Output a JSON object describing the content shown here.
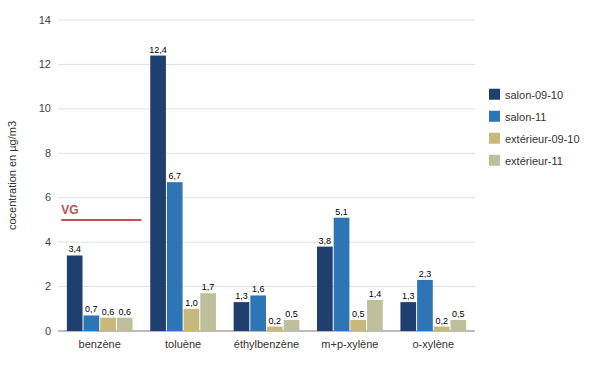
{
  "chart_data": {
    "type": "bar",
    "categories": [
      "benzène",
      "toluène",
      "éthylbenzène",
      "m+p-xylène",
      "o-xylène"
    ],
    "series": [
      {
        "name": "salon-09-10",
        "color": "#1F3F6E",
        "values": [
          3.4,
          12.4,
          1.3,
          3.8,
          1.3
        ],
        "value_labels": [
          "3,4",
          "12,4",
          "1,3",
          "3,8",
          "1,3"
        ]
      },
      {
        "name": "salon-11",
        "color": "#2E75B6",
        "values": [
          0.7,
          6.7,
          1.6,
          5.1,
          2.3
        ],
        "value_labels": [
          "0,7",
          "6,7",
          "1,6",
          "5,1",
          "2,3"
        ]
      },
      {
        "name": "extérieur-09-10",
        "color": "#C8B97A",
        "values": [
          0.6,
          1.0,
          0.2,
          0.5,
          0.2
        ],
        "value_labels": [
          "0,6",
          "1,0",
          "0,2",
          "0,5",
          "0,2"
        ]
      },
      {
        "name": "extérieur-11",
        "color": "#BFC09B",
        "values": [
          0.6,
          1.7,
          0.5,
          1.4,
          0.5
        ],
        "value_labels": [
          "0,6",
          "1,7",
          "0,5",
          "1,4",
          "0,5"
        ]
      }
    ],
    "ylabel": "cocentration en µg/m3",
    "ylim": [
      0,
      14
    ],
    "yticks": [
      0,
      2,
      4,
      6,
      8,
      10,
      12,
      14
    ],
    "annotations": [
      {
        "label": "VG",
        "y": 5.0,
        "color": "#C0504D"
      }
    ],
    "grid": true,
    "legend": "right",
    "data_labels": true
  }
}
